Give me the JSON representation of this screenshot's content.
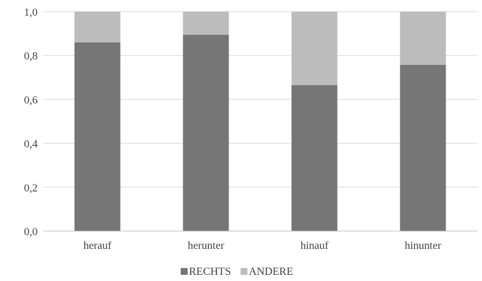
{
  "chart_data": {
    "type": "bar",
    "stacked": true,
    "categories": [
      "herauf",
      "herunter",
      "hinauf",
      "hinunter"
    ],
    "series": [
      {
        "name": "RECHTS",
        "values": [
          0.86,
          0.895,
          0.665,
          0.758
        ],
        "color": "#767676"
      },
      {
        "name": "ANDERE",
        "values": [
          0.14,
          0.105,
          0.335,
          0.242
        ],
        "color": "#bcbcbc"
      }
    ],
    "ylim": [
      0,
      1
    ],
    "yticks": [
      "0,0",
      "0,2",
      "0,4",
      "0,6",
      "0,8",
      "1,0"
    ],
    "grid": true,
    "legend_position": "bottom"
  }
}
